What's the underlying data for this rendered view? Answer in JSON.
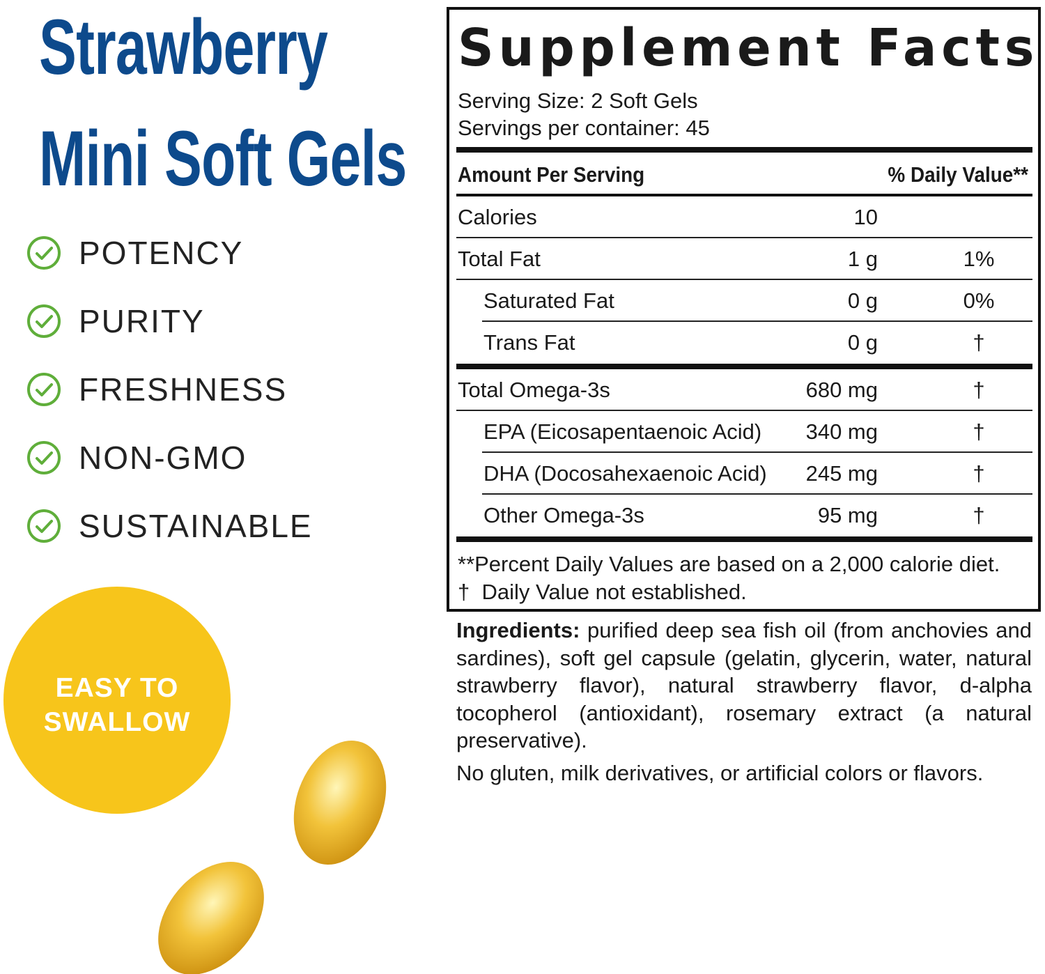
{
  "title": [
    "Strawberry",
    "Mini Soft Gels"
  ],
  "features": [
    "POTENCY",
    "PURITY",
    "FRESHNESS",
    "NON-GMO",
    "SUSTAINABLE"
  ],
  "badge": [
    "EASY TO",
    "SWALLOW"
  ],
  "supplement_facts": {
    "title": "Supplement Facts",
    "serving_size": "Serving Size: 2 Soft Gels",
    "servings_per_container": "Servings per container: 45",
    "header": {
      "amount": "Amount Per Serving",
      "daily_value": "% Daily Value**"
    },
    "sections": [
      [
        {
          "name": "Calories",
          "amount": "10"
        },
        {
          "name": "Total Fat",
          "amount": "1 g",
          "dv": "1%",
          "subrows": [
            {
              "name": "Saturated Fat",
              "amount": "0 g",
              "dv": "0%"
            },
            {
              "name": "Trans Fat",
              "amount": "0 g",
              "dv": "†"
            }
          ]
        }
      ],
      [
        {
          "name": "Total Omega-3s",
          "amount": "680 mg",
          "dv": "†",
          "subrows": [
            {
              "name": "EPA (Eicosapentaenoic Acid)",
              "amount": "340 mg",
              "dv": "†"
            },
            {
              "name": "DHA (Docosahexaenoic Acid)",
              "amount": "245 mg",
              "dv": "†"
            },
            {
              "name": "Other Omega-3s",
              "amount": "95 mg",
              "dv": "†"
            }
          ]
        }
      ]
    ],
    "footnotes": [
      "**Percent Daily Values are based on a 2,000 calorie diet.",
      "†  Daily Value not established."
    ]
  },
  "ingredients": {
    "label": "Ingredients:",
    "text": "purified deep sea fish oil (from anchovies and sardines), soft gel capsule (gelatin, glycerin, water, natural strawberry flavor), natural strawberry flavor, d-alpha tocopherol (antioxidant), rosemary extract (a natural preservative)."
  },
  "note": "No gluten, milk derivatives, or artificial colors or flavors."
}
